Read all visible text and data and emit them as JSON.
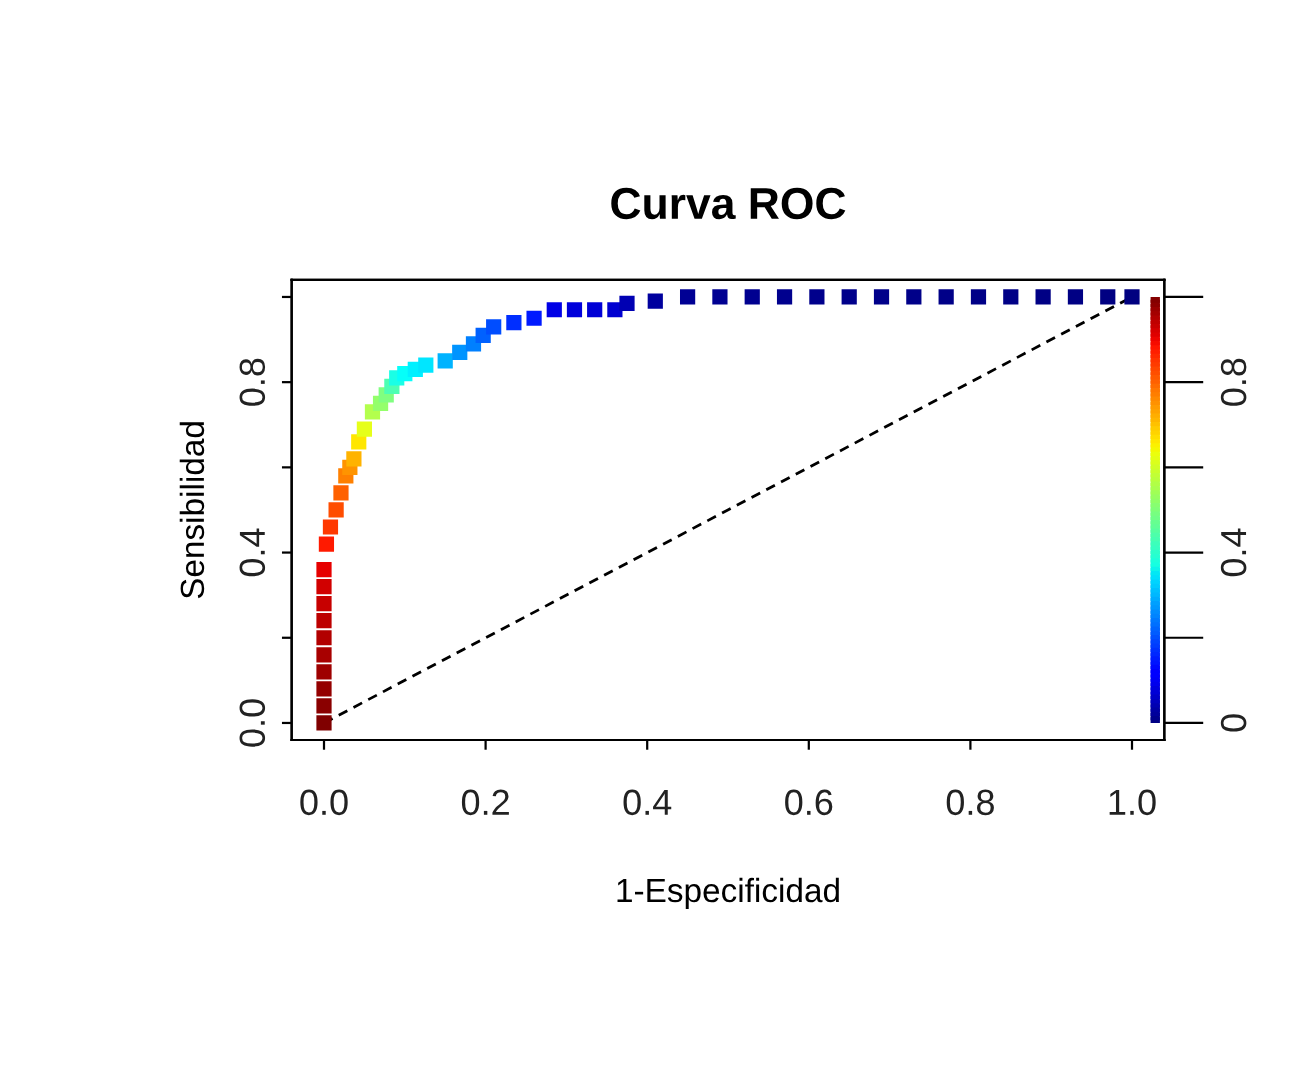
{
  "chart_data": {
    "type": "line",
    "title": "Curva ROC",
    "xlabel": "1-Especificidad",
    "ylabel": "Sensibilidad",
    "xlim": [
      -0.04,
      1.04
    ],
    "ylim": [
      -0.04,
      1.04
    ],
    "xticks": [
      {
        "value": 0.0,
        "label": "0.0"
      },
      {
        "value": 0.2,
        "label": "0.2"
      },
      {
        "value": 0.4,
        "label": "0.4"
      },
      {
        "value": 0.6,
        "label": "0.6"
      },
      {
        "value": 0.8,
        "label": "0.8"
      },
      {
        "value": 1.0,
        "label": "1.0"
      }
    ],
    "yticks": [
      {
        "value": 0.0,
        "label": "0.0"
      },
      {
        "value": 0.2,
        "label": null
      },
      {
        "value": 0.4,
        "label": "0.4"
      },
      {
        "value": 0.6,
        "label": null
      },
      {
        "value": 0.8,
        "label": "0.8"
      },
      {
        "value": 1.0,
        "label": null
      }
    ],
    "y2lim": [
      -0.04,
      1.04
    ],
    "y2ticks": [
      0,
      {
        "value": 0.2,
        "label": null
      },
      0.4,
      {
        "value": 0.6,
        "label": null
      },
      0.8,
      {
        "value": 1.0,
        "label": null
      }
    ],
    "series": [
      {
        "type": "scatter",
        "marker": "square",
        "x": [
          0,
          0,
          0,
          0,
          0,
          0,
          0,
          0,
          0,
          0,
          0.003,
          0.008,
          0.015,
          0.021,
          0.027,
          0.032,
          0.037,
          0.043,
          0.05,
          0.06,
          0.07,
          0.077,
          0.084,
          0.09,
          0.1,
          0.113,
          0.126,
          0.15,
          0.168,
          0.185,
          0.197,
          0.21,
          0.235,
          0.26,
          0.285,
          0.31,
          0.335,
          0.36,
          0.375,
          0.41,
          0.45,
          0.49,
          0.53,
          0.57,
          0.61,
          0.65,
          0.69,
          0.73,
          0.77,
          0.81,
          0.85,
          0.89,
          0.93,
          0.97,
          1
        ],
        "values": [
          0,
          0.04,
          0.08,
          0.12,
          0.16,
          0.2,
          0.24,
          0.28,
          0.32,
          0.36,
          0.42,
          0.46,
          0.5,
          0.54,
          0.58,
          0.6,
          0.62,
          0.66,
          0.69,
          0.73,
          0.75,
          0.77,
          0.79,
          0.81,
          0.82,
          0.83,
          0.84,
          0.85,
          0.87,
          0.89,
          0.91,
          0.93,
          0.94,
          0.95,
          0.97,
          0.97,
          0.97,
          0.97,
          0.985,
          0.99,
          1,
          1,
          1,
          1,
          1,
          1,
          1,
          1,
          1,
          1,
          1,
          1,
          1,
          1,
          1
        ],
        "colors": [
          "#800000",
          "#8a0000",
          "#940000",
          "#9e0000",
          "#a80000",
          "#b20000",
          "#bd0000",
          "#c70000",
          "#d10000",
          "#e60000",
          "#ff1a00",
          "#ff3800",
          "#ff4d00",
          "#ff6100",
          "#ff8000",
          "#ff9400",
          "#ffb300",
          "#ffe600",
          "#e6ff1a",
          "#b3ff4d",
          "#94ff6b",
          "#80ff80",
          "#4dffb3",
          "#1affe6",
          "#05fffa",
          "#00f0ff",
          "#00e6ff",
          "#00b3ff",
          "#0094ff",
          "#0080ff",
          "#0061ff",
          "#004dff",
          "#002eff",
          "#001aff",
          "#0000e6",
          "#0000db",
          "#0000d6",
          "#0000d1",
          "#0000b3",
          "#00009e",
          "#000094",
          "#000092",
          "#000090",
          "#00008e",
          "#00008c",
          "#00008b",
          "#00008a",
          "#000089",
          "#000088",
          "#000087",
          "#000086",
          "#000085",
          "#000084",
          "#000082",
          "#000080"
        ]
      },
      {
        "x": [
          0,
          1
        ],
        "values": [
          0,
          1
        ],
        "color": "#000000",
        "line_style": "dashed"
      }
    ]
  }
}
